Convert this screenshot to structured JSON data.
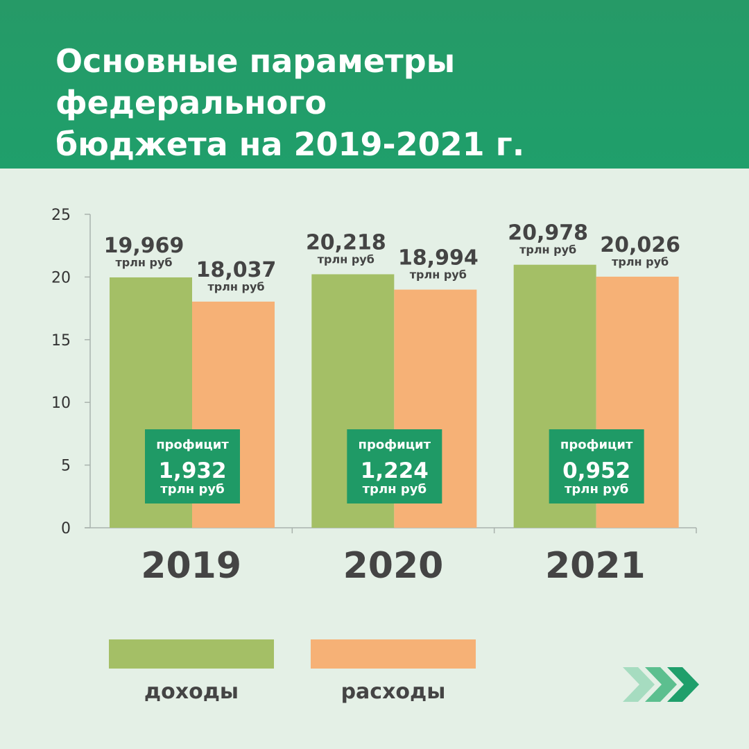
{
  "header": {
    "title_line1": "Основные параметры федерального",
    "title_line2": "бюджета на 2019-2021 г."
  },
  "colors": {
    "header_bg": "#1f9f6b",
    "income": "#a4bf66",
    "expense": "#f6b176",
    "surplus_box": "#1f9a66",
    "text_dark": "#444444"
  },
  "chart_data": {
    "type": "bar",
    "title": "Основные параметры федерального бюджета на 2019-2021 г.",
    "categories": [
      "2019",
      "2020",
      "2021"
    ],
    "series": [
      {
        "name": "доходы",
        "values": [
          19.969,
          20.218,
          20.978
        ],
        "labels": [
          "19,969",
          "20,218",
          "20,978"
        ]
      },
      {
        "name": "расходы",
        "values": [
          18.037,
          18.994,
          20.026
        ],
        "labels": [
          "18,037",
          "18,994",
          "20,026"
        ]
      }
    ],
    "unit_label": "трлн руб",
    "surplus": {
      "label": "профицит",
      "values": [
        "1,932",
        "1,224",
        "0,952"
      ]
    },
    "ylim": [
      0,
      25
    ],
    "yticks": [
      0,
      5,
      10,
      15,
      20,
      25
    ],
    "xlabel": "",
    "ylabel": "",
    "legend_position": "bottom"
  },
  "legend": {
    "income_label": "доходы",
    "expense_label": "расходы"
  },
  "nav": {
    "arrows_icon": "chevrons-right-icon"
  }
}
